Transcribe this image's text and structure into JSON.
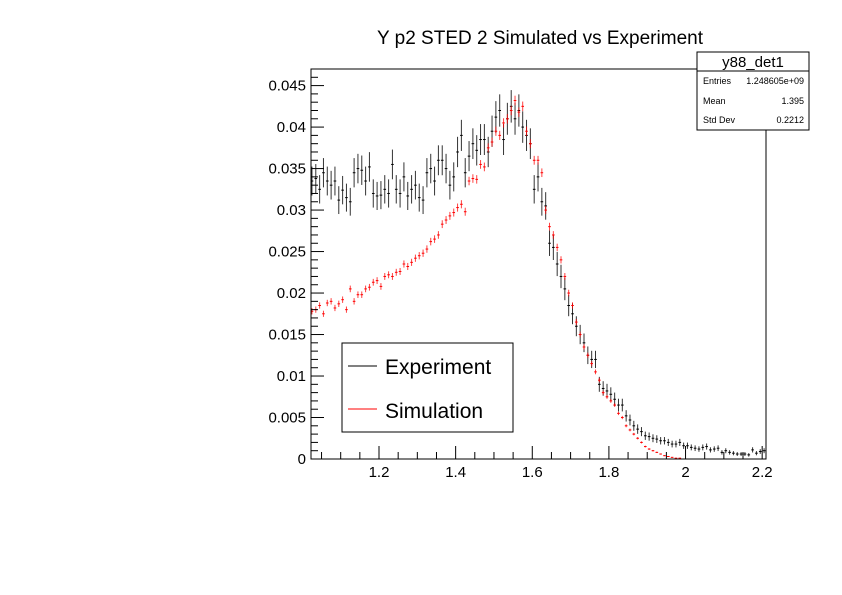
{
  "chart_data": {
    "type": "scatter",
    "title": "Y p2 STED 2 Simulated vs Experiment",
    "xlabel": "",
    "ylabel": "",
    "xlim": [
      1.0225,
      2.21
    ],
    "ylim": [
      0,
      0.047
    ],
    "bin_start": 1.02,
    "bin_width": 0.01,
    "x_ticks": [
      1.2,
      1.4,
      1.6,
      1.8,
      2,
      2.2
    ],
    "x_tick_labels": [
      "1.2",
      "1.4",
      "1.6",
      "1.8",
      "2",
      "2.2"
    ],
    "y_ticks": [
      0,
      0.005,
      0.01,
      0.015,
      0.02,
      0.025,
      0.03,
      0.035,
      0.04,
      0.045
    ],
    "y_tick_labels": [
      "0",
      "0.005",
      "0.01",
      "0.015",
      "0.02",
      "0.025",
      "0.03",
      "0.035",
      "0.04",
      "0.045"
    ],
    "grid": false,
    "legend_position": "bottom-left",
    "series": [
      {
        "name": "Experiment",
        "color": "#000000",
        "values": [
          0.0335,
          0.0338,
          0.0325,
          0.0345,
          0.0335,
          0.033,
          0.0335,
          0.0312,
          0.0324,
          0.0315,
          0.031,
          0.0345,
          0.035,
          0.0348,
          0.0335,
          0.0352,
          0.032,
          0.0317,
          0.0318,
          0.0325,
          0.032,
          0.0355,
          0.0325,
          0.032,
          0.034,
          0.0317,
          0.0325,
          0.033,
          0.0315,
          0.0312,
          0.0345,
          0.035,
          0.0335,
          0.036,
          0.036,
          0.035,
          0.033,
          0.034,
          0.037,
          0.039,
          0.0345,
          0.0365,
          0.038,
          0.0372,
          0.0385,
          0.0385,
          0.037,
          0.0395,
          0.0412,
          0.042,
          0.0385,
          0.041,
          0.0425,
          0.041,
          0.042,
          0.04,
          0.039,
          0.038,
          0.0325,
          0.034,
          0.031,
          0.0305,
          0.026,
          0.0255,
          0.0235,
          0.022,
          0.0205,
          0.0185,
          0.0175,
          0.016,
          0.015,
          0.014,
          0.0125,
          0.012,
          0.012,
          0.009,
          0.0085,
          0.0082,
          0.0078,
          0.0072,
          0.0065,
          0.0065,
          0.0052,
          0.0047,
          0.004,
          0.0036,
          0.0033,
          0.0028,
          0.0027,
          0.0025,
          0.0024,
          0.0022,
          0.0022,
          0.002,
          0.0018,
          0.0018,
          0.002,
          0.0016,
          0.0016,
          0.0014,
          0.0013,
          0.0012,
          0.0014,
          0.0015,
          0.0011,
          0.0012,
          0.0013,
          0.0008,
          0.001,
          0.0008,
          0.0007,
          0.0006,
          0.0006,
          0.0006,
          0.0005,
          0.0011,
          0.0007,
          0.0009,
          0.001
        ]
      },
      {
        "name": "Simulation",
        "color": "#ff0000",
        "values": [
          0.0178,
          0.018,
          0.0185,
          0.0175,
          0.0188,
          0.019,
          0.0182,
          0.0187,
          0.0192,
          0.018,
          0.0205,
          0.019,
          0.0198,
          0.0198,
          0.0205,
          0.0207,
          0.0213,
          0.0215,
          0.0208,
          0.022,
          0.0222,
          0.022,
          0.0225,
          0.0226,
          0.0235,
          0.0232,
          0.0237,
          0.0242,
          0.0245,
          0.0248,
          0.0253,
          0.0262,
          0.0265,
          0.027,
          0.0283,
          0.0288,
          0.0293,
          0.0297,
          0.0303,
          0.0307,
          0.0298,
          0.0335,
          0.0338,
          0.0337,
          0.0355,
          0.0352,
          0.0375,
          0.0382,
          0.0395,
          0.039,
          0.0405,
          0.041,
          0.042,
          0.0432,
          0.0418,
          0.0425,
          0.0395,
          0.038,
          0.036,
          0.036,
          0.0345,
          0.03,
          0.028,
          0.027,
          0.0255,
          0.024,
          0.022,
          0.02,
          0.0185,
          0.0165,
          0.015,
          0.0135,
          0.0125,
          0.0115,
          0.0105,
          0.0095,
          0.008,
          0.0075,
          0.007,
          0.0065,
          0.0055,
          0.005,
          0.004,
          0.0035,
          0.003,
          0.0025,
          0.002,
          0.0015,
          0.0012,
          0.001,
          0.0008,
          0.0006,
          0.0004,
          0.0003,
          0.0002,
          0.0001,
          0.0001,
          0,
          0,
          0,
          0,
          0,
          0,
          0,
          0,
          0,
          0,
          0,
          0,
          0,
          0,
          0,
          0,
          0,
          0,
          0,
          0,
          0,
          0
        ]
      }
    ],
    "stats_box": {
      "title": "y88_det1",
      "rows": [
        {
          "label": "Entries",
          "value": "1.248605e+09"
        },
        {
          "label": "Mean",
          "value": "1.395"
        },
        {
          "label": "Std Dev",
          "value": "0.2212"
        }
      ]
    }
  }
}
